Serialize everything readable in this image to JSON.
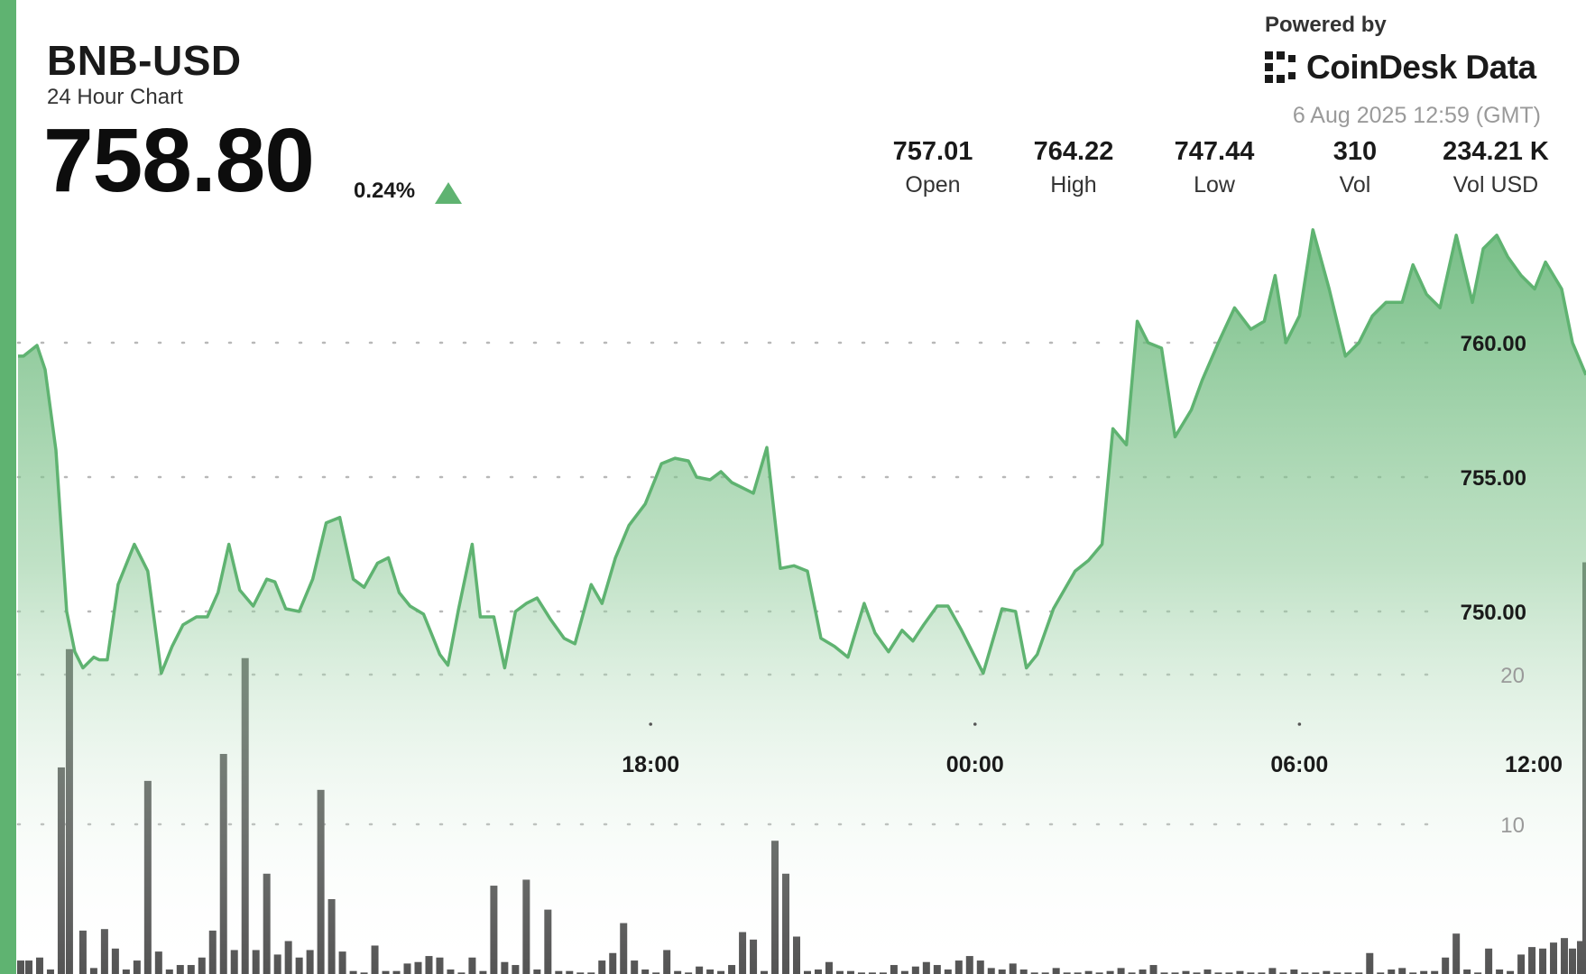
{
  "header": {
    "symbol": "BNB-USD",
    "subtitle": "24 Hour Chart",
    "price": "758.80",
    "change": "0.24%",
    "change_direction": "up",
    "accent_color": "#5fb371"
  },
  "branding": {
    "powered_by": "Powered by",
    "name": "CoinDesk Data",
    "logo_icon": "coindesk-logo-icon",
    "timestamp": "6 Aug 2025 12:59 (GMT)"
  },
  "stats": [
    {
      "value": "757.01",
      "label": "Open"
    },
    {
      "value": "764.22",
      "label": "High"
    },
    {
      "value": "747.44",
      "label": "Low"
    },
    {
      "value": "310",
      "label": "Vol"
    },
    {
      "value": "234.21 K",
      "label": "Vol USD"
    }
  ],
  "chart_data": [
    {
      "type": "area",
      "title": "",
      "xlabel": "",
      "ylabel": "",
      "x_tick_labels": [
        "18:00",
        "00:00",
        "06:00",
        "12:00"
      ],
      "x_range_hours": [
        -17.7,
        11.3
      ],
      "y_ticks": [
        {
          "value": 750,
          "label": "750.00"
        },
        {
          "value": 755,
          "label": "755.00"
        },
        {
          "value": 760,
          "label": "760.00"
        }
      ],
      "ylim": [
        747.44,
        764.22
      ],
      "grid": "dotted horizontal",
      "line_color": "#5fb371",
      "series": [
        {
          "hours_from_midnight": [
            -17.7,
            -17.6,
            -17.35,
            -17.2,
            -17.0,
            -16.8,
            -16.65,
            -16.5,
            -16.3,
            -16.2,
            -16.05,
            -15.85,
            -15.55,
            -15.3,
            -15.05,
            -14.85,
            -14.65,
            -14.4,
            -14.2,
            -14.0,
            -13.8,
            -13.6,
            -13.35,
            -13.1,
            -12.95,
            -12.75,
            -12.5,
            -12.25,
            -12.0,
            -11.75,
            -11.5,
            -11.3,
            -11.05,
            -10.85,
            -10.65,
            -10.45,
            -10.2,
            -9.9,
            -9.75,
            -9.55,
            -9.3,
            -9.15,
            -8.9,
            -8.7,
            -8.5,
            -8.3,
            -8.1,
            -7.85,
            -7.6,
            -7.4,
            -7.1,
            -6.9,
            -6.65,
            -6.4,
            -6.1,
            -5.8,
            -5.55,
            -5.3,
            -5.15,
            -4.9,
            -4.7,
            -4.5,
            -4.3,
            -4.1,
            -3.85,
            -3.6,
            -3.35,
            -3.1,
            -2.85,
            -2.6,
            -2.35,
            -2.05,
            -1.85,
            -1.6,
            -1.35,
            -1.15,
            -0.95,
            -0.7,
            -0.5,
            -0.25,
            0.15,
            0.5,
            0.75,
            0.95,
            1.15,
            1.45,
            1.85,
            2.1,
            2.35,
            2.55,
            2.8,
            3.0,
            3.2,
            3.45,
            3.7,
            4.0,
            4.2,
            4.5,
            4.8,
            5.1,
            5.35,
            5.55,
            5.75,
            6.0,
            6.25,
            6.55,
            6.85,
            7.1,
            7.35,
            7.6,
            7.9,
            8.1,
            8.35,
            8.6,
            8.9,
            9.2,
            9.4,
            9.65,
            9.85,
            10.1,
            10.35,
            10.55,
            10.85,
            11.05,
            11.3
          ],
          "values": [
            759.5,
            759.5,
            759.9,
            759.0,
            756.0,
            750.0,
            748.5,
            747.9,
            748.3,
            748.2,
            748.2,
            751.0,
            752.5,
            751.5,
            747.7,
            748.7,
            749.5,
            749.8,
            749.8,
            750.7,
            752.5,
            750.8,
            750.2,
            751.2,
            751.1,
            750.1,
            750.0,
            751.2,
            753.3,
            753.5,
            751.2,
            750.9,
            751.8,
            752.0,
            750.7,
            750.2,
            749.9,
            748.4,
            748.0,
            750.1,
            752.5,
            749.8,
            749.8,
            747.9,
            750.0,
            750.3,
            750.5,
            749.7,
            749.0,
            748.8,
            751.0,
            750.3,
            752.0,
            753.2,
            754.0,
            755.5,
            755.7,
            755.6,
            755.0,
            754.9,
            755.2,
            754.8,
            754.6,
            754.4,
            756.1,
            751.6,
            751.7,
            751.5,
            749.0,
            748.7,
            748.3,
            750.3,
            749.2,
            748.5,
            749.3,
            748.9,
            749.5,
            750.2,
            750.2,
            749.3,
            747.7,
            750.1,
            750.0,
            747.9,
            748.4,
            750.1,
            751.5,
            751.9,
            752.5,
            756.8,
            756.2,
            760.8,
            760.0,
            759.8,
            756.5,
            757.5,
            758.6,
            760.0,
            761.3,
            760.5,
            760.8,
            762.5,
            760.0,
            761.0,
            764.2,
            762.0,
            759.5,
            760.0,
            761.0,
            761.5,
            761.5,
            762.9,
            761.8,
            761.3,
            764.0,
            761.5,
            763.5,
            764.0,
            763.2,
            762.5,
            762.0,
            763.0,
            762.0,
            760.0,
            758.8
          ]
        },
        {
          "name": "Volume",
          "y_ticks": [
            {
              "value": 10,
              "label": "10"
            },
            {
              "value": 20,
              "label": "20"
            }
          ],
          "bar_color": "#545454",
          "hours_from_midnight": [
            -17.65,
            -17.5,
            -17.3,
            -17.1,
            -16.9,
            -16.75,
            -16.5,
            -16.3,
            -16.1,
            -15.9,
            -15.7,
            -15.5,
            -15.3,
            -15.1,
            -14.9,
            -14.7,
            -14.5,
            -14.3,
            -14.1,
            -13.9,
            -13.7,
            -13.5,
            -13.3,
            -13.1,
            -12.9,
            -12.7,
            -12.5,
            -12.3,
            -12.1,
            -11.9,
            -11.7,
            -11.5,
            -11.3,
            -11.1,
            -10.9,
            -10.7,
            -10.5,
            -10.3,
            -10.1,
            -9.9,
            -9.7,
            -9.5,
            -9.3,
            -9.1,
            -8.9,
            -8.7,
            -8.5,
            -8.3,
            -8.1,
            -7.9,
            -7.7,
            -7.5,
            -7.3,
            -7.1,
            -6.9,
            -6.7,
            -6.5,
            -6.3,
            -6.1,
            -5.9,
            -5.7,
            -5.5,
            -5.3,
            -5.1,
            -4.9,
            -4.7,
            -4.5,
            -4.3,
            -4.1,
            -3.9,
            -3.7,
            -3.5,
            -3.3,
            -3.1,
            -2.9,
            -2.7,
            -2.5,
            -2.3,
            -2.1,
            -1.9,
            -1.7,
            -1.5,
            -1.3,
            -1.1,
            -0.9,
            -0.7,
            -0.5,
            -0.3,
            -0.1,
            0.1,
            0.3,
            0.5,
            0.7,
            0.9,
            1.1,
            1.3,
            1.5,
            1.7,
            1.9,
            2.1,
            2.3,
            2.5,
            2.7,
            2.9,
            3.1,
            3.3,
            3.5,
            3.7,
            3.9,
            4.1,
            4.3,
            4.5,
            4.7,
            4.9,
            5.1,
            5.3,
            5.5,
            5.7,
            5.9,
            6.1,
            6.3,
            6.5,
            6.7,
            6.9,
            7.1,
            7.3,
            7.5,
            7.7,
            7.9,
            8.1,
            8.3,
            8.5,
            8.7,
            8.9,
            9.1,
            9.3,
            9.5,
            9.7,
            9.9,
            10.1,
            10.3,
            10.5,
            10.7,
            10.9,
            11.05,
            11.2,
            11.3
          ],
          "values": [
            0.9,
            0.9,
            1.1,
            0.3,
            13.8,
            21.7,
            2.9,
            0.4,
            3.0,
            1.7,
            0.3,
            0.9,
            12.9,
            1.5,
            0.3,
            0.6,
            0.6,
            1.1,
            2.9,
            14.7,
            1.6,
            21.1,
            1.6,
            6.7,
            1.3,
            2.2,
            1.1,
            1.6,
            12.3,
            5.0,
            1.5,
            0.2,
            0.1,
            1.9,
            0.2,
            0.2,
            0.7,
            0.8,
            1.2,
            1.1,
            0.3,
            0.1,
            1.1,
            0.2,
            5.9,
            0.8,
            0.6,
            6.3,
            0.3,
            4.3,
            0.2,
            0.2,
            0.1,
            0.1,
            0.9,
            1.4,
            3.4,
            0.9,
            0.3,
            0.1,
            1.6,
            0.2,
            0.1,
            0.5,
            0.3,
            0.2,
            0.6,
            2.8,
            2.3,
            0.2,
            8.9,
            6.7,
            2.5,
            0.2,
            0.3,
            0.8,
            0.2,
            0.2,
            0.1,
            0.1,
            0.1,
            0.6,
            0.2,
            0.5,
            0.8,
            0.6,
            0.3,
            0.9,
            1.2,
            0.9,
            0.4,
            0.3,
            0.7,
            0.3,
            0.1,
            0.1,
            0.4,
            0.1,
            0.1,
            0.2,
            0.1,
            0.2,
            0.4,
            0.1,
            0.3,
            0.6,
            0.1,
            0.1,
            0.2,
            0.1,
            0.3,
            0.1,
            0.1,
            0.2,
            0.1,
            0.1,
            0.4,
            0.1,
            0.3,
            0.1,
            0.1,
            0.2,
            0.1,
            0.1,
            0.1,
            1.4,
            0.1,
            0.3,
            0.4,
            0.1,
            0.2,
            0.2,
            1.1,
            2.7,
            0.3,
            0.1,
            1.7,
            0.3,
            0.2,
            1.3,
            1.8,
            1.7,
            2.1,
            2.4,
            1.7,
            2.2,
            27.5,
            1.9,
            27.0
          ]
        }
      ]
    }
  ]
}
